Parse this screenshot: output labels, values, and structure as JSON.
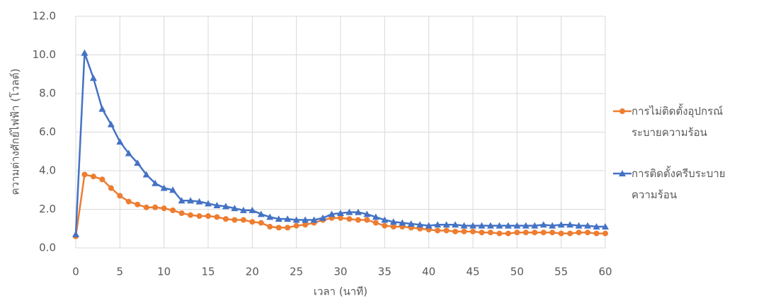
{
  "chart_data": {
    "type": "line",
    "y_label": "ความต่างศักย์ไฟฟ้า (โวลต์)",
    "x_label": "เวลา (นาที)",
    "x": [
      0,
      1,
      2,
      3,
      4,
      5,
      6,
      7,
      8,
      9,
      10,
      11,
      12,
      13,
      14,
      15,
      16,
      17,
      18,
      19,
      20,
      21,
      22,
      23,
      24,
      25,
      26,
      27,
      28,
      29,
      30,
      31,
      32,
      33,
      34,
      35,
      36,
      37,
      38,
      39,
      40,
      41,
      42,
      43,
      44,
      45,
      46,
      47,
      48,
      49,
      50,
      51,
      52,
      53,
      54,
      55,
      56,
      57,
      58,
      59,
      60
    ],
    "series": [
      {
        "name": "การไม่ติดตั้งอุปกรณ์ระบายความร้อน",
        "color": "#ed7d31",
        "marker": "circle",
        "values": [
          0.6,
          3.8,
          3.7,
          3.55,
          3.1,
          2.7,
          2.4,
          2.25,
          2.1,
          2.1,
          2.05,
          1.95,
          1.8,
          1.7,
          1.65,
          1.65,
          1.6,
          1.5,
          1.45,
          1.45,
          1.35,
          1.3,
          1.1,
          1.05,
          1.05,
          1.15,
          1.2,
          1.3,
          1.45,
          1.55,
          1.55,
          1.5,
          1.45,
          1.45,
          1.3,
          1.15,
          1.1,
          1.1,
          1.05,
          1.0,
          0.95,
          0.9,
          0.9,
          0.85,
          0.85,
          0.85,
          0.8,
          0.8,
          0.75,
          0.75,
          0.8,
          0.8,
          0.8,
          0.8,
          0.8,
          0.75,
          0.75,
          0.8,
          0.8,
          0.75,
          0.75
        ]
      },
      {
        "name": "การติดตั้งครีบระบายความร้อน",
        "color": "#4472c4",
        "marker": "triangle",
        "values": [
          0.7,
          10.1,
          8.8,
          7.2,
          6.4,
          5.5,
          4.9,
          4.4,
          3.8,
          3.35,
          3.1,
          3.0,
          2.45,
          2.45,
          2.4,
          2.3,
          2.2,
          2.15,
          2.05,
          1.95,
          1.95,
          1.75,
          1.6,
          1.5,
          1.5,
          1.45,
          1.45,
          1.45,
          1.55,
          1.75,
          1.8,
          1.85,
          1.85,
          1.75,
          1.6,
          1.45,
          1.35,
          1.3,
          1.25,
          1.2,
          1.15,
          1.2,
          1.2,
          1.2,
          1.15,
          1.15,
          1.15,
          1.15,
          1.15,
          1.15,
          1.15,
          1.15,
          1.15,
          1.2,
          1.15,
          1.2,
          1.2,
          1.15,
          1.15,
          1.1,
          1.1
        ]
      }
    ],
    "xlim": [
      0,
      60
    ],
    "xticks": [
      0,
      5,
      10,
      15,
      20,
      25,
      30,
      35,
      40,
      45,
      50,
      55,
      60
    ],
    "ylim": [
      0,
      12
    ],
    "yticks": [
      {
        "value": 0,
        "label": "0.0"
      },
      {
        "value": 2,
        "label": "2.0"
      },
      {
        "value": 4,
        "label": "4.0"
      },
      {
        "value": 6,
        "label": "6.0"
      },
      {
        "value": 8,
        "label": "8.0"
      },
      {
        "value": 10,
        "label": "10.0"
      },
      {
        "value": 12,
        "label": "12.0"
      }
    ],
    "grid": true,
    "legend": "right"
  }
}
